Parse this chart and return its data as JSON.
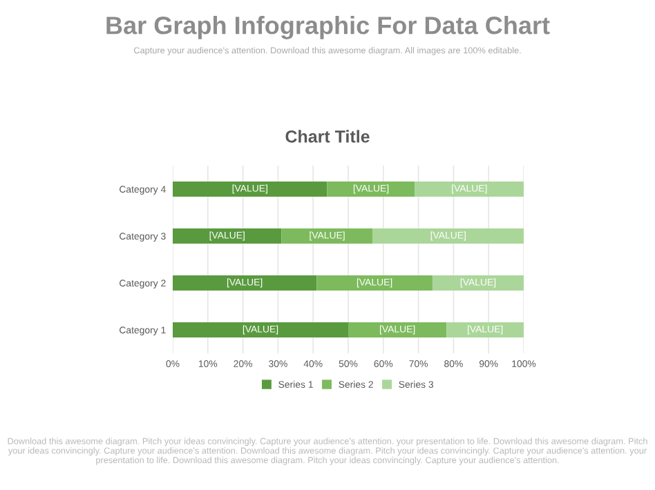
{
  "chart_data": {
    "type": "bar",
    "orientation": "horizontal",
    "stacked": true,
    "title": "Bar Graph Infographic For Data Chart",
    "subtitle": "Capture your audience's attention. Download this awesome diagram. All images are 100% editable.",
    "annotations": [
      "Chart Title",
      "Download this awesome diagram. Pitch your ideas convincingly. Capture your audience's attention. your presentation to life. Download this awesome diagram. Pitch your ideas convincingly. Capture your audience's attention. Download this awesome diagram. Pitch your ideas convincingly. Capture your audience's attention. your presentation to life. Download this awesome diagram. Pitch your ideas convincingly. Capture your audience's attention."
    ],
    "categories": [
      "Category 4",
      "Category 3",
      "Category 2",
      "Category 1"
    ],
    "series": [
      {
        "name": "Series 1",
        "color": "#5a9a3f",
        "values": [
          44,
          31,
          41,
          50
        ],
        "value_labels": [
          "[VALUE]",
          "[VALUE]",
          "[VALUE]",
          "[VALUE]"
        ]
      },
      {
        "name": "Series 2",
        "color": "#7dba5d",
        "values": [
          25,
          26,
          33,
          28
        ],
        "value_labels": [
          "[VALUE]",
          "[VALUE]",
          "[VALUE]",
          "[VALUE]"
        ]
      },
      {
        "name": "Series 3",
        "color": "#abd69a",
        "values": [
          31,
          43,
          26,
          22
        ],
        "value_labels": [
          "[VALUE]",
          "[VALUE]",
          "[VALUE]",
          "[VALUE]"
        ]
      }
    ],
    "xlim": [
      0,
      100
    ],
    "xticks": [
      {
        "value": 0,
        "label": "0%"
      },
      {
        "value": 10,
        "label": "10%"
      },
      {
        "value": 20,
        "label": "20%"
      },
      {
        "value": 30,
        "label": "30%"
      },
      {
        "value": 40,
        "label": "40%"
      },
      {
        "value": 50,
        "label": "50%"
      },
      {
        "value": 60,
        "label": "60%"
      },
      {
        "value": 70,
        "label": "70%"
      },
      {
        "value": 80,
        "label": "80%"
      },
      {
        "value": 90,
        "label": "90%"
      },
      {
        "value": 100,
        "label": "100%"
      }
    ],
    "grid": "x",
    "legend": "bottom"
  }
}
